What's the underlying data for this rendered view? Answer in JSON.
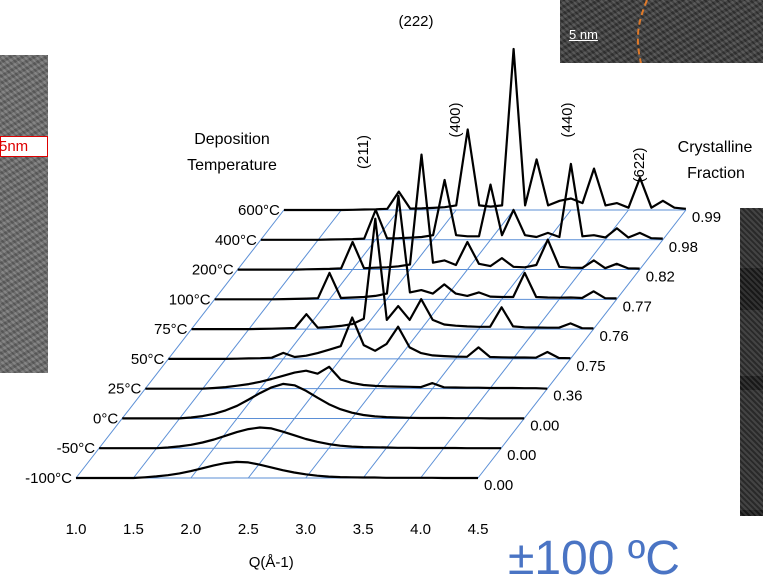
{
  "left_image": {
    "scale_label": "5nm"
  },
  "top_image": {
    "scale_label": "5 nm"
  },
  "bottom_text": "±100 ºC",
  "chart_data": {
    "type": "line",
    "x": [
      1.0,
      1.1,
      1.2,
      1.3,
      1.4,
      1.5,
      1.6,
      1.7,
      1.8,
      1.9,
      2.0,
      2.1,
      2.2,
      2.3,
      2.4,
      2.5,
      2.6,
      2.7,
      2.8,
      2.9,
      3.0,
      3.1,
      3.2,
      3.3,
      3.4,
      3.5,
      3.6,
      3.7,
      3.8,
      3.9,
      4.0,
      4.1,
      4.2,
      4.3,
      4.4,
      4.5
    ],
    "xlabel": "Q(Å-1)",
    "xticks": [
      "1.0",
      "1.5",
      "2.0",
      "2.5",
      "3.0",
      "3.5",
      "4.0",
      "4.5"
    ],
    "xlim": [
      1.0,
      4.5
    ],
    "legend_title": [
      "Deposition",
      "Temperature"
    ],
    "fraction_title": [
      "Crystalline",
      "Fraction"
    ],
    "peaks": [
      "(211)",
      "(222)",
      "(400)",
      "(440)",
      "(622)"
    ],
    "series": [
      {
        "name": "-100°C",
        "fraction": "0.00",
        "values": [
          0,
          0,
          0,
          0,
          0,
          0,
          0.3,
          0.7,
          1.2,
          2.0,
          3.0,
          4.2,
          5.5,
          6.5,
          7.0,
          6.8,
          5.8,
          4.6,
          3.4,
          2.4,
          1.6,
          1.0,
          0.6,
          0.4,
          0.3,
          0.2,
          0.2,
          0.1,
          0.1,
          0.1,
          0.1,
          0.1,
          0,
          0,
          0,
          0
        ]
      },
      {
        "name": "-50°C",
        "fraction": "0.00",
        "values": [
          0,
          0,
          0,
          0,
          0,
          0,
          0.3,
          0.8,
          1.5,
          2.5,
          3.8,
          5.4,
          7.0,
          8.3,
          9.0,
          8.6,
          7.2,
          5.6,
          4.0,
          2.8,
          1.8,
          1.1,
          0.7,
          0.5,
          0.4,
          0.3,
          0.2,
          0.2,
          0.1,
          0.1,
          0.1,
          0.1,
          0,
          0,
          0,
          0
        ]
      },
      {
        "name": "0°C",
        "fraction": "0.00",
        "values": [
          0,
          0,
          0,
          0,
          0,
          0,
          0.4,
          1.0,
          2.0,
          3.5,
          5.5,
          8.2,
          11.0,
          13.5,
          15.0,
          14.4,
          12.0,
          9.0,
          6.2,
          4.0,
          2.5,
          1.5,
          0.9,
          0.6,
          0.4,
          0.3,
          0.2,
          0.2,
          0.2,
          0.1,
          0.1,
          0.1,
          0,
          0,
          0,
          0
        ]
      },
      {
        "name": "25°C",
        "fraction": "0.36",
        "values": [
          0,
          0,
          0,
          0,
          0,
          0,
          0.3,
          0.7,
          1.3,
          2.0,
          3.0,
          4.2,
          5.6,
          7.0,
          7.8,
          6.5,
          9.5,
          4.0,
          2.5,
          1.6,
          1.2,
          1.0,
          0.9,
          0.8,
          0.7,
          2.4,
          0.6,
          0.5,
          0.4,
          0.4,
          0.3,
          0.3,
          0.3,
          0.2,
          0.2,
          0
        ]
      },
      {
        "name": "50°C",
        "fraction": "0.75",
        "values": [
          0,
          0,
          0,
          0,
          0,
          0,
          0.1,
          0.2,
          0.3,
          0.5,
          2.6,
          0.8,
          1.4,
          2.5,
          4.0,
          5.5,
          18.0,
          6.0,
          3.5,
          6.5,
          14.0,
          5.0,
          2.5,
          1.5,
          1.2,
          1.0,
          0.9,
          5.0,
          0.8,
          0.7,
          0.6,
          0.6,
          0.5,
          3.0,
          0.4,
          0.3
        ]
      },
      {
        "name": "75°C",
        "fraction": "0.76",
        "values": [
          0,
          0,
          0,
          0,
          0,
          0,
          0.1,
          0.2,
          0.3,
          0.5,
          6.5,
          0.6,
          0.9,
          1.4,
          2.2,
          4.5,
          48.0,
          4.0,
          10.0,
          4.0,
          13.0,
          4.0,
          2.0,
          1.5,
          1.2,
          1.0,
          1.0,
          9.5,
          1.2,
          0.8,
          0.7,
          0.6,
          0.6,
          2.5,
          0.4,
          0.3
        ]
      },
      {
        "name": "100°C",
        "fraction": "0.77",
        "values": [
          0,
          0,
          0,
          0,
          0,
          0,
          0.1,
          0.2,
          0.3,
          0.5,
          11.5,
          0.6,
          0.8,
          1.0,
          1.5,
          2.5,
          45.0,
          3.0,
          4.0,
          2.5,
          6.5,
          2.5,
          1.5,
          3.0,
          1.2,
          1.0,
          1.0,
          11.5,
          1.0,
          0.8,
          0.7,
          0.8,
          0.6,
          3.5,
          0.5,
          0.4
        ]
      },
      {
        "name": "200°C",
        "fraction": "0.82",
        "values": [
          0,
          0,
          0,
          0,
          0,
          0,
          0.1,
          0.2,
          0.3,
          0.5,
          12.0,
          0.6,
          0.8,
          1.0,
          1.4,
          2.2,
          50.0,
          3.0,
          4.0,
          2.0,
          12.0,
          2.5,
          1.5,
          5.0,
          1.2,
          1.0,
          2.0,
          13.0,
          1.2,
          0.8,
          0.7,
          4.0,
          0.6,
          2.5,
          0.5,
          0.4
        ]
      },
      {
        "name": "400°C",
        "fraction": "0.98",
        "values": [
          0,
          0,
          0,
          0,
          0,
          0,
          0.1,
          0.2,
          0.3,
          0.5,
          13.0,
          0.6,
          0.7,
          0.9,
          1.2,
          2.0,
          26.0,
          2.0,
          1.5,
          1.5,
          24.0,
          2.0,
          13.0,
          2.0,
          1.2,
          3.0,
          1.2,
          33.0,
          1.5,
          2.0,
          1.0,
          5.0,
          1.0,
          3.0,
          0.7,
          0.5
        ]
      },
      {
        "name": "600°C",
        "fraction": "0.99",
        "values": [
          0,
          0,
          0,
          0,
          0,
          0,
          0.1,
          0.2,
          0.3,
          0.5,
          8.0,
          0.6,
          0.7,
          0.9,
          1.2,
          2.0,
          35.0,
          2.0,
          1.5,
          2.0,
          70.0,
          2.0,
          22.0,
          2.0,
          4.0,
          5.0,
          3.0,
          18.0,
          2.0,
          3.0,
          1.0,
          14.0,
          1.0,
          4.0,
          1.0,
          0.5
        ]
      }
    ]
  }
}
